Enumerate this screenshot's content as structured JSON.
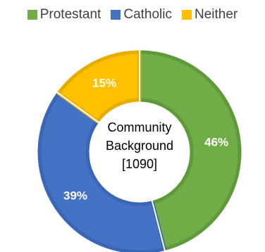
{
  "chart_data": {
    "type": "pie",
    "donut": true,
    "categories": [
      "Protestant",
      "Catholic",
      "Neither"
    ],
    "values": [
      46,
      39,
      15
    ],
    "data_labels": [
      "46%",
      "39%",
      "15%"
    ],
    "colors": [
      "#70ad47",
      "#4472c4",
      "#ffc000"
    ],
    "border_colors": [
      "#5e9a3a",
      "#3a66b5",
      "#e6ac00"
    ],
    "legend_position": "top",
    "center_label": [
      "Community",
      "Background",
      "[1090]"
    ]
  }
}
